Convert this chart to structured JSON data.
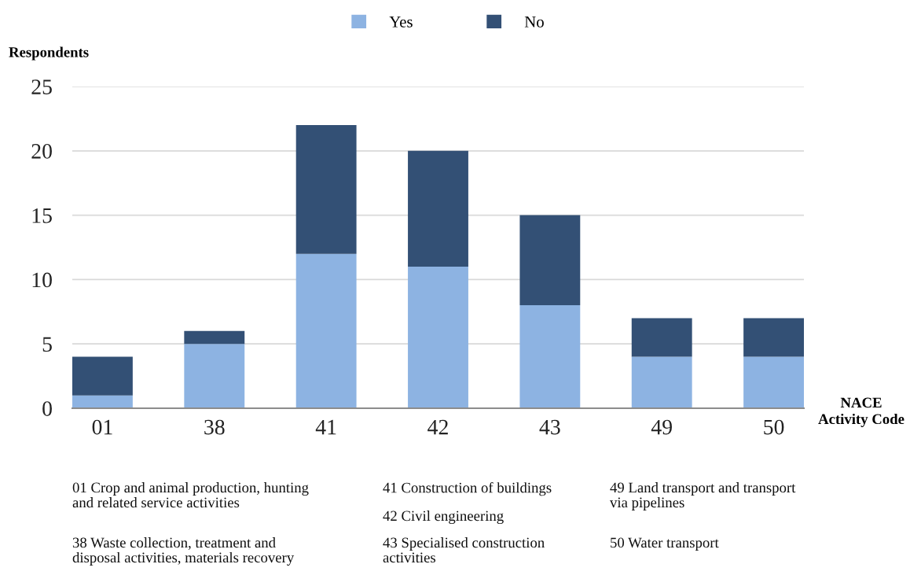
{
  "chart_data": {
    "type": "bar",
    "stacked": true,
    "categories": [
      "01",
      "38",
      "41",
      "42",
      "43",
      "49",
      "50"
    ],
    "series": [
      {
        "name": "Yes",
        "color": "#8db3e2",
        "values": [
          1,
          5,
          12,
          11,
          8,
          4,
          4
        ]
      },
      {
        "name": "No",
        "color": "#335075",
        "values": [
          3,
          1,
          10,
          9,
          7,
          3,
          3
        ]
      }
    ],
    "ylabel": "Respondents",
    "xlabel": "NACE\nActivity Code",
    "ylim": [
      0,
      25
    ],
    "yticks": [
      0,
      5,
      10,
      15,
      20,
      25
    ],
    "grid": "y",
    "legend": "top",
    "annotations": [
      "01 Crop and animal production, hunting\nand related service activities",
      "38 Waste collection, treatment and\ndisposal activities, materials recovery",
      "41 Construction of buildings",
      "42 Civil engineering",
      "43 Specialised construction\nactivities",
      "49 Land transport and transport\nvia pipelines",
      "50 Water transport"
    ]
  }
}
